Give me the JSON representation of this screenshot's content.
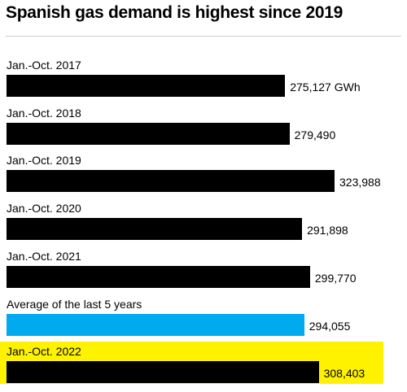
{
  "chart_data": {
    "type": "bar",
    "orientation": "horizontal",
    "title": "Spanish gas demand is highest since 2019",
    "categories": [
      "Jan.-Oct. 2017",
      "Jan.-Oct. 2018",
      "Jan.-Oct. 2019",
      "Jan.-Oct. 2020",
      "Jan.-Oct. 2021",
      "Average of the last 5 years",
      "Jan.-Oct. 2022"
    ],
    "values": [
      275127,
      279490,
      323988,
      291898,
      299770,
      294055,
      308403
    ],
    "value_labels": [
      "275,127 GWh",
      "279,490",
      "323,988",
      "291,898",
      "299,770",
      "294,055",
      "308,403"
    ],
    "unit": "GWh",
    "xlim": [
      0,
      323988
    ],
    "highlighted_category": "Jan.-Oct. 2022",
    "colors": {
      "bar": "#000000",
      "average_bar": "#00aaee",
      "highlight_background": "#fff200"
    }
  }
}
